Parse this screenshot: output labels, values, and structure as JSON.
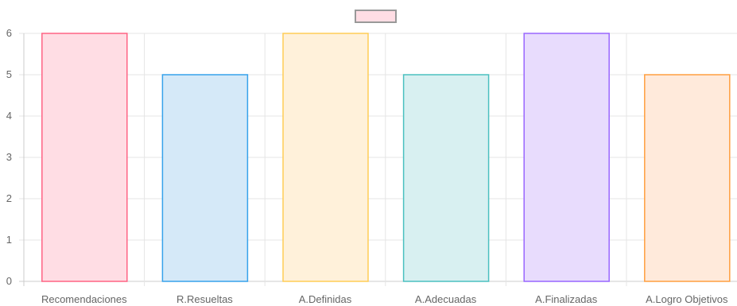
{
  "chart_data": {
    "type": "bar",
    "title": "",
    "xlabel": "",
    "ylabel": "",
    "ylim": [
      0,
      6
    ],
    "yticks": [
      0,
      1,
      2,
      3,
      4,
      5,
      6
    ],
    "grid": true,
    "legend": {
      "position": "top-center",
      "labels": [
        ""
      ]
    },
    "categories": [
      "Recomendaciones",
      "R.Resueltas",
      "A.Definidas",
      "A.Adecuadas",
      "A.Finalizadas",
      "A.Logro Objetivos"
    ],
    "series": [
      {
        "values": [
          6,
          5,
          6,
          5,
          6,
          5
        ]
      }
    ],
    "colors": {
      "fill": [
        "#ffdde4",
        "#d5e9f8",
        "#fff1da",
        "#d8f0f1",
        "#e8dcfd",
        "#ffeadb"
      ],
      "stroke": [
        "#ff6384",
        "#36a2eb",
        "#ffcd56",
        "#4bc0c0",
        "#9966ff",
        "#ff9f40"
      ],
      "legend_fill": "#ffdde4",
      "legend_stroke": "#999999",
      "grid": "#e5e5e5",
      "axis": "#cccccc",
      "text": "#666666"
    }
  }
}
